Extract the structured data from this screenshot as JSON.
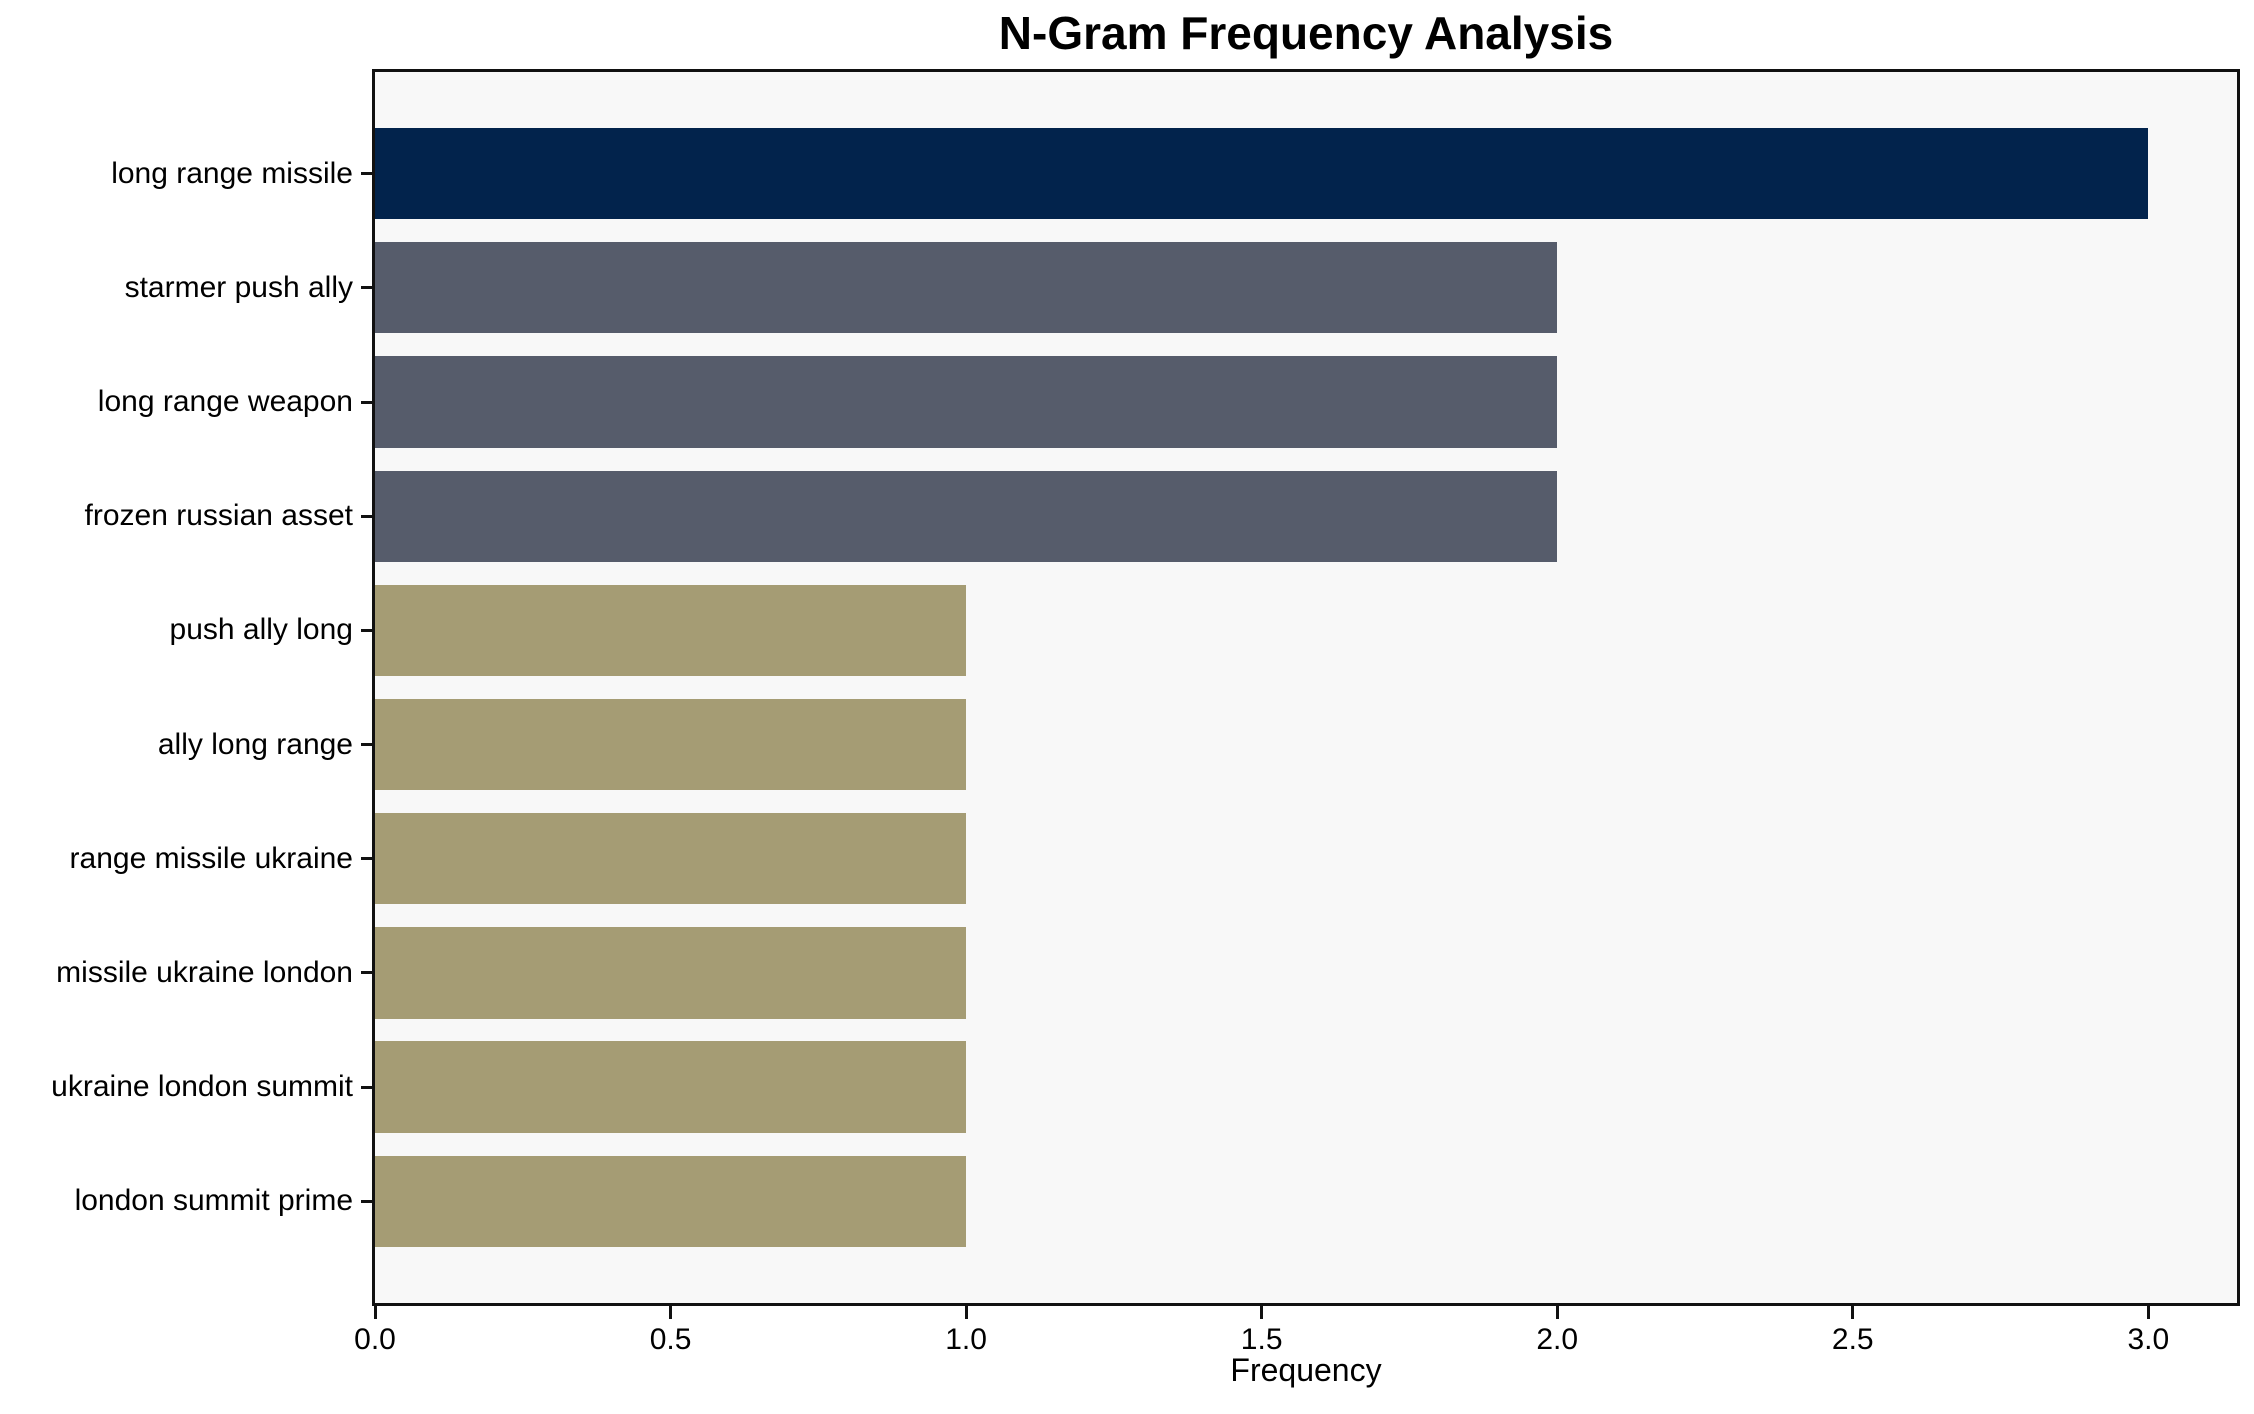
{
  "chart_data": {
    "type": "bar",
    "orientation": "horizontal",
    "title": "N-Gram Frequency Analysis",
    "xlabel": "Frequency",
    "ylabel": "",
    "categories": [
      "long range missile",
      "starmer push ally",
      "long range weapon",
      "frozen russian asset",
      "push ally long",
      "ally long range",
      "range missile ukraine",
      "missile ukraine london",
      "ukraine london summit",
      "london summit prime"
    ],
    "values": [
      3,
      2,
      2,
      2,
      1,
      1,
      1,
      1,
      1,
      1
    ],
    "bar_colors": [
      "#02234c",
      "#565c6b",
      "#565c6b",
      "#565c6b",
      "#a59c74",
      "#a59c74",
      "#a59c74",
      "#a59c74",
      "#a59c74",
      "#a59c74"
    ],
    "xticks": [
      0.0,
      0.5,
      1.0,
      1.5,
      2.0,
      2.5,
      3.0
    ],
    "xtick_labels": [
      "0.0",
      "0.5",
      "1.0",
      "1.5",
      "2.0",
      "2.5",
      "3.0"
    ],
    "xlim": [
      0,
      3.15
    ],
    "grid": false,
    "legend": null,
    "plot_background": "#f8f8f8",
    "spine_color": "#111111"
  }
}
